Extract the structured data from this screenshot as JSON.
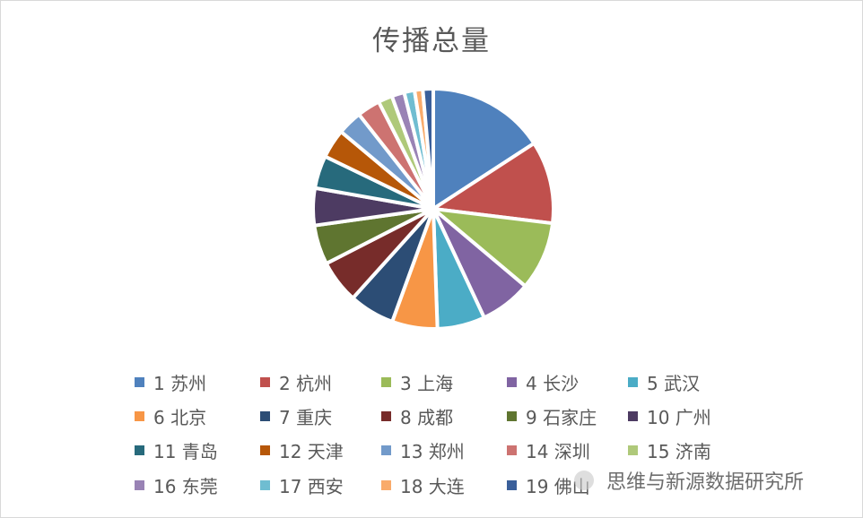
{
  "chart_data": {
    "type": "pie",
    "title": "传播总量",
    "legend_position": "bottom",
    "categories": [
      "1 苏州",
      "2 杭州",
      "3 上海",
      "4 长沙",
      "5 武汉",
      "6 北京",
      "7 重庆",
      "8 成都",
      "9 石家庄",
      "10 广州",
      "11 青岛",
      "12 天津",
      "13 郑州",
      "14 深圳",
      "15 济南",
      "16 东莞",
      "17 西安",
      "18 大连",
      "19 佛山"
    ],
    "values": [
      15.8,
      11.1,
      9.2,
      6.9,
      6.4,
      6.1,
      6.1,
      5.8,
      5.3,
      5.0,
      4.4,
      3.9,
      3.3,
      3.1,
      1.9,
      1.7,
      1.4,
      1.1,
      1.4
    ],
    "colors": [
      "#4F81BD",
      "#C0504D",
      "#9BBB59",
      "#8064A2",
      "#4BACC6",
      "#F79646",
      "#2C4D75",
      "#772C2A",
      "#5F7530",
      "#4D3B62",
      "#276A7C",
      "#B65708",
      "#729ACA",
      "#CD7371",
      "#AFC97A",
      "#9983B5",
      "#6FBDD1",
      "#F9AB6B",
      "#3A5F9A"
    ]
  },
  "watermark": "思维与新源数据研究所"
}
